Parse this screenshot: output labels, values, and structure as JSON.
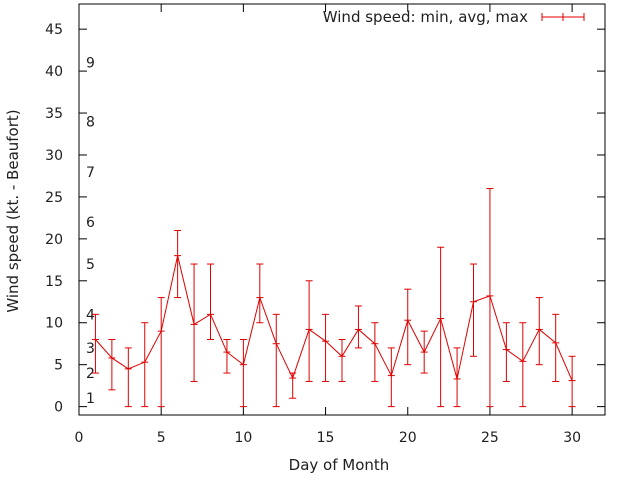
{
  "chart_data": {
    "type": "line",
    "title": "",
    "xlabel": "Day of Month",
    "ylabel": "Wind speed (kt. - Beaufort)",
    "xlim": [
      0,
      32
    ],
    "ylim": [
      -1,
      48
    ],
    "grid": false,
    "legend_position": "top-right",
    "x_ticks": [
      "0",
      "5",
      "10",
      "15",
      "20",
      "25",
      "30"
    ],
    "y_ticks": [
      "0",
      "5",
      "10",
      "15",
      "20",
      "25",
      "30",
      "35",
      "40",
      "45"
    ],
    "beaufort_labels": [
      {
        "label": "1",
        "value": 1
      },
      {
        "label": "2",
        "value": 4
      },
      {
        "label": "3",
        "value": 7
      },
      {
        "label": "4",
        "value": 11
      },
      {
        "label": "5",
        "value": 17
      },
      {
        "label": "6",
        "value": 22
      },
      {
        "label": "7",
        "value": 28
      },
      {
        "label": "8",
        "value": 34
      },
      {
        "label": "9",
        "value": 41
      }
    ],
    "series": [
      {
        "name": "Wind speed: min, avg, max",
        "color": "#e00000",
        "x": [
          1,
          2,
          3,
          4,
          5,
          6,
          7,
          8,
          9,
          10,
          11,
          12,
          13,
          14,
          15,
          16,
          17,
          18,
          19,
          20,
          21,
          22,
          23,
          24,
          25,
          26,
          27,
          28,
          29,
          30
        ],
        "avg": [
          8,
          5.8,
          4.5,
          5.3,
          9,
          18,
          9.8,
          11,
          6.5,
          5,
          13,
          7.5,
          3.4,
          9.2,
          7.8,
          6,
          9.2,
          7.5,
          3.7,
          10.3,
          6.5,
          10.5,
          3.3,
          12.5,
          13.2,
          6.8,
          5.4,
          9.2,
          7.6,
          3.1
        ],
        "min": [
          4,
          2,
          0,
          0,
          0,
          13,
          3,
          8,
          4,
          0,
          10,
          0,
          1,
          3,
          3,
          3,
          7,
          3,
          0,
          5,
          4,
          0,
          0,
          6,
          0,
          3,
          0,
          5,
          3,
          0
        ],
        "max": [
          11,
          8,
          7,
          10,
          13,
          21,
          17,
          17,
          8,
          8,
          17,
          11,
          4,
          15,
          11,
          8,
          12,
          10,
          7,
          14,
          9,
          19,
          7,
          17,
          26,
          10,
          10,
          13,
          11,
          6
        ]
      }
    ]
  }
}
